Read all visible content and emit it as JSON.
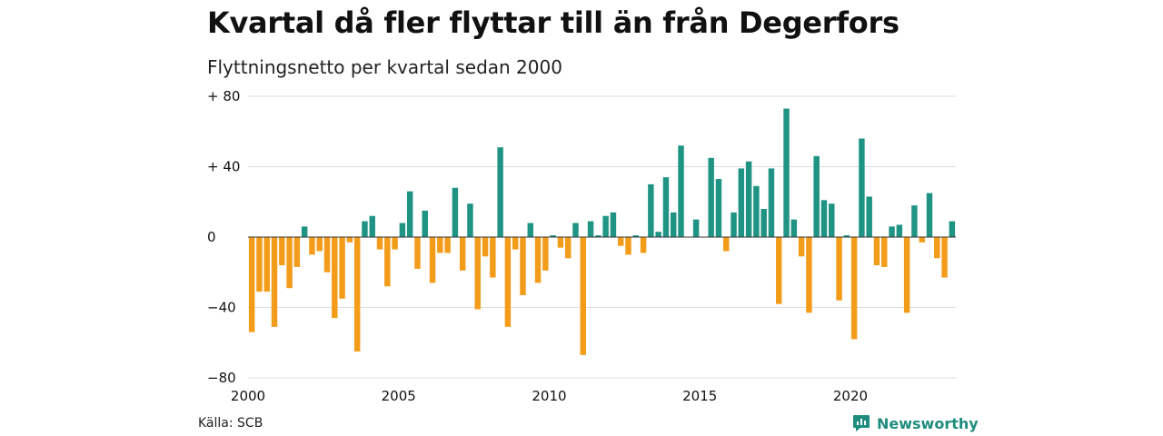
{
  "title": "Kvartal då fler flyttar till än från Degerfors",
  "subtitle": "Flyttningsnetto per kvartal sedan 2000",
  "source": "Källa: SCB",
  "brand": {
    "name": "Newsworthy",
    "icon": "newsworthy-logo-icon"
  },
  "colors": {
    "positive": "#1f9484",
    "negative": "#f39c1a",
    "grid": "#dddddd",
    "zero": "#333333"
  },
  "chart_data": {
    "type": "bar",
    "title": "Kvartal då fler flyttar till än från Degerfors",
    "subtitle": "Flyttningsnetto per kvartal sedan 2000",
    "xlabel": "",
    "ylabel": "",
    "ylim": [
      -80,
      80
    ],
    "yticks": [
      -80,
      -40,
      0,
      40,
      80
    ],
    "ytick_labels": [
      "−80",
      "−40",
      "0",
      "+ 40",
      "+ 80"
    ],
    "xticks": [
      2000,
      2005,
      2010,
      2015,
      2020
    ],
    "xtick_labels": [
      "2000",
      "2005",
      "2010",
      "2015",
      "2020"
    ],
    "start_year": 2000,
    "grid": true,
    "values": [
      -54,
      -31,
      -31,
      -51,
      -16,
      -29,
      -17,
      6,
      -10,
      -8,
      -20,
      -46,
      -35,
      -3,
      -65,
      9,
      12,
      -7,
      -28,
      -7,
      8,
      26,
      -18,
      15,
      -26,
      -9,
      -9,
      28,
      -19,
      19,
      -41,
      -11,
      -23,
      51,
      -51,
      -7,
      -33,
      8,
      -26,
      -19,
      1,
      -6,
      -12,
      8,
      -67,
      9,
      1,
      12,
      14,
      -5,
      -10,
      1,
      -9,
      30,
      3,
      34,
      14,
      52,
      0,
      10,
      0,
      45,
      33,
      -8,
      14,
      39,
      43,
      29,
      16,
      39,
      -38,
      73,
      10,
      -11,
      -43,
      46,
      21,
      19,
      -36,
      1,
      -58,
      56,
      23,
      -16,
      -17,
      6,
      7,
      -43,
      18,
      -3,
      25,
      -12,
      -23,
      9
    ]
  }
}
